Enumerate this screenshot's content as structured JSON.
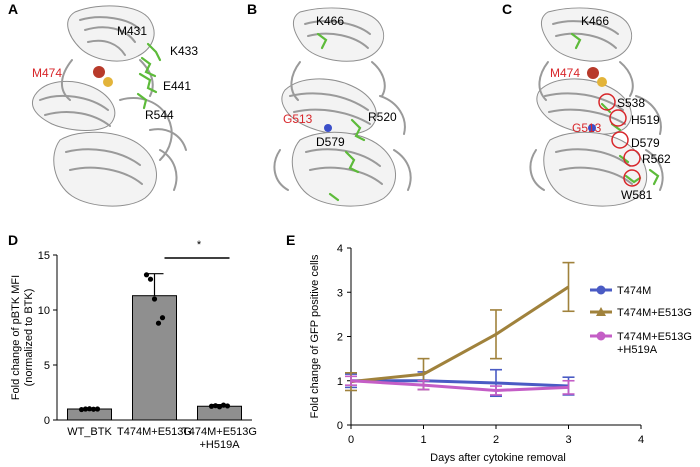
{
  "structure_panels": [
    {
      "letter": "A",
      "labels": [
        {
          "text": "M431",
          "color": "black"
        },
        {
          "text": "K433",
          "color": "black"
        },
        {
          "text": "M474",
          "color": "red"
        },
        {
          "text": "E441",
          "color": "black"
        },
        {
          "text": "R544",
          "color": "black"
        }
      ]
    },
    {
      "letter": "B",
      "labels": [
        {
          "text": "K466",
          "color": "black"
        },
        {
          "text": "G513",
          "color": "red"
        },
        {
          "text": "R520",
          "color": "black"
        },
        {
          "text": "D579",
          "color": "black"
        }
      ]
    },
    {
      "letter": "C",
      "labels": [
        {
          "text": "K466",
          "color": "black"
        },
        {
          "text": "M474",
          "color": "red"
        },
        {
          "text": "S538",
          "color": "black"
        },
        {
          "text": "H519",
          "color": "black"
        },
        {
          "text": "G513",
          "color": "red"
        },
        {
          "text": "D579",
          "color": "black"
        },
        {
          "text": "R562",
          "color": "black"
        },
        {
          "text": "W581",
          "color": "black"
        }
      ]
    }
  ],
  "colors": {
    "bar_fill": "#8f8f8f",
    "series_T474M": "#4a5bc4",
    "series_T474M_E513G": "#a0823c",
    "series_T474M_E513G_H519A": "#c45ec6",
    "highlight_red": "#d8262a",
    "sidechain_green": "#5dbb3a"
  },
  "chart_data": [
    {
      "panel": "D",
      "type": "bar",
      "title": "",
      "ylabel": "Fold change of pBTK MFI (normalized to BTK)",
      "ylabel_lines": [
        "Fold change of pBTK MFI",
        "(normalized to BTK)"
      ],
      "ylim": [
        0,
        15
      ],
      "yticks": [
        0,
        5,
        10,
        15
      ],
      "categories": [
        "WT_BTK",
        "T474M+E513G",
        "T474M+E513G\n+H519A"
      ],
      "category_lines": [
        [
          "WT_BTK"
        ],
        [
          "T474M+E513G"
        ],
        [
          "T474M+E513G",
          "+H519A"
        ]
      ],
      "values": [
        1.0,
        11.3,
        1.25
      ],
      "errors": [
        0.05,
        2.0,
        0.15
      ],
      "points": [
        [
          0.95,
          1.0,
          1.02,
          0.98,
          1.0
        ],
        [
          13.2,
          12.8,
          11.0,
          8.8,
          9.3
        ],
        [
          1.25,
          1.3,
          1.2,
          1.35,
          1.28
        ]
      ],
      "significance": {
        "from": 1,
        "to": 2,
        "label": "*"
      },
      "grid": false
    },
    {
      "panel": "E",
      "type": "line",
      "title": "",
      "xlabel": "Days after cytokine removal",
      "ylabel": "Fold change of GFP positive cells",
      "xlim": [
        0,
        4
      ],
      "ylim": [
        0,
        4
      ],
      "xticks": [
        0,
        1,
        2,
        3,
        4
      ],
      "yticks": [
        0,
        1,
        2,
        3,
        4
      ],
      "x": [
        0,
        1,
        2,
        3
      ],
      "series": [
        {
          "name": "T474M",
          "values": [
            1.0,
            1.0,
            0.95,
            0.88
          ],
          "errors": [
            0.15,
            0.2,
            0.3,
            0.2
          ]
        },
        {
          "name": "T474M+E513G",
          "values": [
            0.98,
            1.15,
            2.05,
            3.12
          ],
          "errors": [
            0.2,
            0.35,
            0.55,
            0.55
          ]
        },
        {
          "name": "T474M+E513G\n+H519A",
          "name_lines": [
            "T474M+E513G",
            "+H519A"
          ],
          "values": [
            1.0,
            0.9,
            0.78,
            0.85
          ],
          "errors": [
            0.1,
            0.1,
            0.1,
            0.15
          ]
        }
      ],
      "legend": "right",
      "grid": false
    }
  ]
}
